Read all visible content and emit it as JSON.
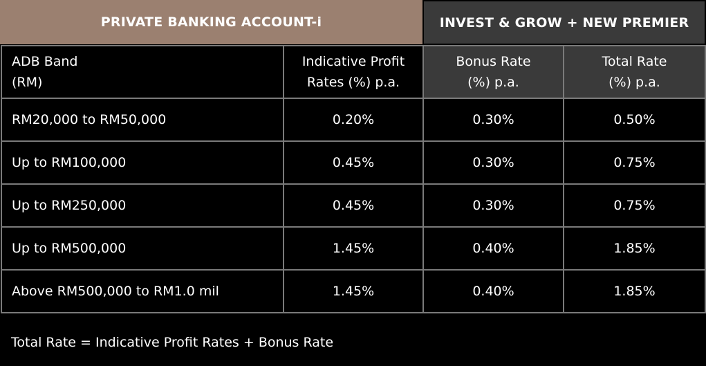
{
  "header": {
    "left_title": "PRIVATE BANKING ACCOUNT-i",
    "right_title": "INVEST & GROW + NEW PREMIER"
  },
  "columns": [
    {
      "line1": "ADB Band",
      "line2": "(RM)"
    },
    {
      "line1": "Indicative Profit",
      "line2": "Rates (%) p.a."
    },
    {
      "line1": "Bonus Rate",
      "line2": "(%) p.a."
    },
    {
      "line1": "Total Rate",
      "line2": "(%) p.a."
    }
  ],
  "rows": [
    {
      "band": "RM20,000 to RM50,000",
      "profit": "0.20%",
      "bonus": "0.30%",
      "total": "0.50%"
    },
    {
      "band": "Up to RM100,000",
      "profit": "0.45%",
      "bonus": "0.30%",
      "total": "0.75%"
    },
    {
      "band": "Up to RM250,000",
      "profit": "0.45%",
      "bonus": "0.30%",
      "total": "0.75%"
    },
    {
      "band": "Up to RM500,000",
      "profit": "1.45%",
      "bonus": "0.40%",
      "total": "1.85%"
    },
    {
      "band": "Above RM500,000 to RM1.0 mil",
      "profit": "1.45%",
      "bonus": "0.40%",
      "total": "1.85%"
    }
  ],
  "footer": {
    "note": "Total Rate = Indicative Profit Rates + Bonus Rate"
  },
  "colors": {
    "left_header_bg": "#9b8070",
    "right_header_bg": "#3a3a3a",
    "border": "#7a7a7a"
  }
}
